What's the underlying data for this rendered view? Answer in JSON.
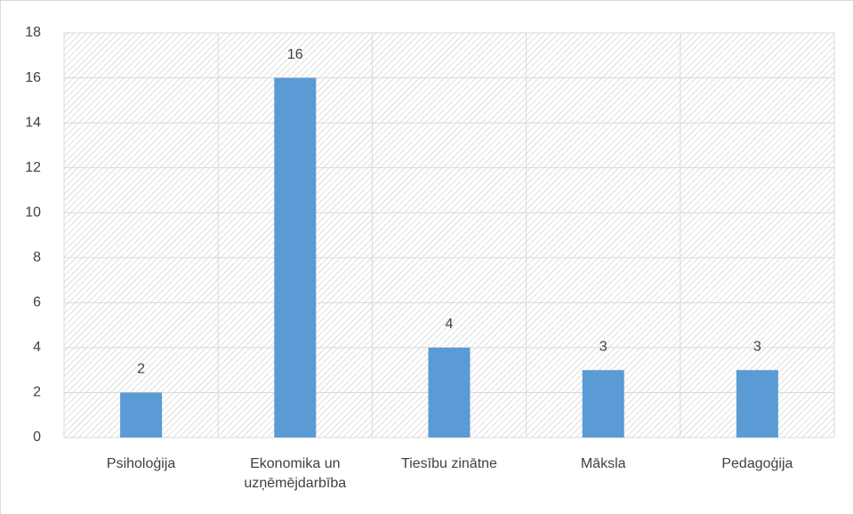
{
  "chart_data": {
    "type": "bar",
    "categories": [
      "Psiholoģija",
      "Ekonomika un uzņēmējdarbība",
      "Tiesību zinātne",
      "Māksla",
      "Pedagoģija"
    ],
    "values": [
      2,
      16,
      4,
      3,
      3
    ],
    "color": "#5b9bd5",
    "ylim": [
      0,
      18
    ],
    "yticks": [
      0,
      2,
      4,
      6,
      8,
      10,
      12,
      14,
      16,
      18
    ],
    "grid": true,
    "data_labels": true
  }
}
